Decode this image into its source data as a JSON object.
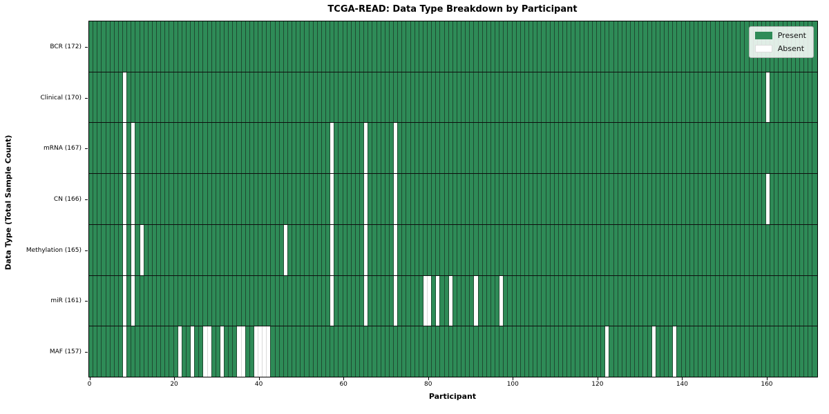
{
  "chart_data": {
    "type": "heatmap",
    "title": "TCGA-READ: Data Type Breakdown by Participant",
    "xlabel": "Participant",
    "ylabel": "Data Type (Total Sample Count)",
    "n_participants": 172,
    "x_ticks": [
      0,
      20,
      40,
      60,
      80,
      100,
      120,
      140,
      160
    ],
    "grid": true,
    "legend": {
      "position": "upper right",
      "entries": [
        {
          "label": "Present",
          "color": "#2e8b57"
        },
        {
          "label": "Absent",
          "color": "#ffffff"
        }
      ]
    },
    "colors": {
      "present": "#2e8b57",
      "absent": "#ffffff",
      "cell_edge_on_present": "#1f4a31",
      "cell_edge_on_absent": "#d9d9d9",
      "row_divider": "#0d0d0d",
      "frame": "#000000"
    },
    "rows": [
      {
        "label": "BCR (172)",
        "data_type": "BCR",
        "total_samples": 172,
        "absent_participants": []
      },
      {
        "label": "Clinical (170)",
        "data_type": "Clinical",
        "total_samples": 170,
        "absent_participants": [
          8,
          160
        ]
      },
      {
        "label": "mRNA (167)",
        "data_type": "mRNA",
        "total_samples": 167,
        "absent_participants": [
          8,
          10,
          57,
          65,
          72
        ]
      },
      {
        "label": "CN (166)",
        "data_type": "CN",
        "total_samples": 166,
        "absent_participants": [
          8,
          10,
          57,
          65,
          72,
          160
        ]
      },
      {
        "label": "Methylation (165)",
        "data_type": "Methylation",
        "total_samples": 165,
        "absent_participants": [
          8,
          10,
          12,
          46,
          57,
          65,
          72
        ]
      },
      {
        "label": "miR (161)",
        "data_type": "miR",
        "total_samples": 161,
        "absent_participants": [
          8,
          10,
          57,
          65,
          72,
          79,
          80,
          82,
          85,
          91,
          97
        ]
      },
      {
        "label": "MAF (157)",
        "data_type": "MAF",
        "total_samples": 157,
        "absent_participants": [
          8,
          21,
          24,
          27,
          28,
          31,
          35,
          36,
          39,
          40,
          41,
          42,
          122,
          133,
          138
        ]
      }
    ]
  }
}
